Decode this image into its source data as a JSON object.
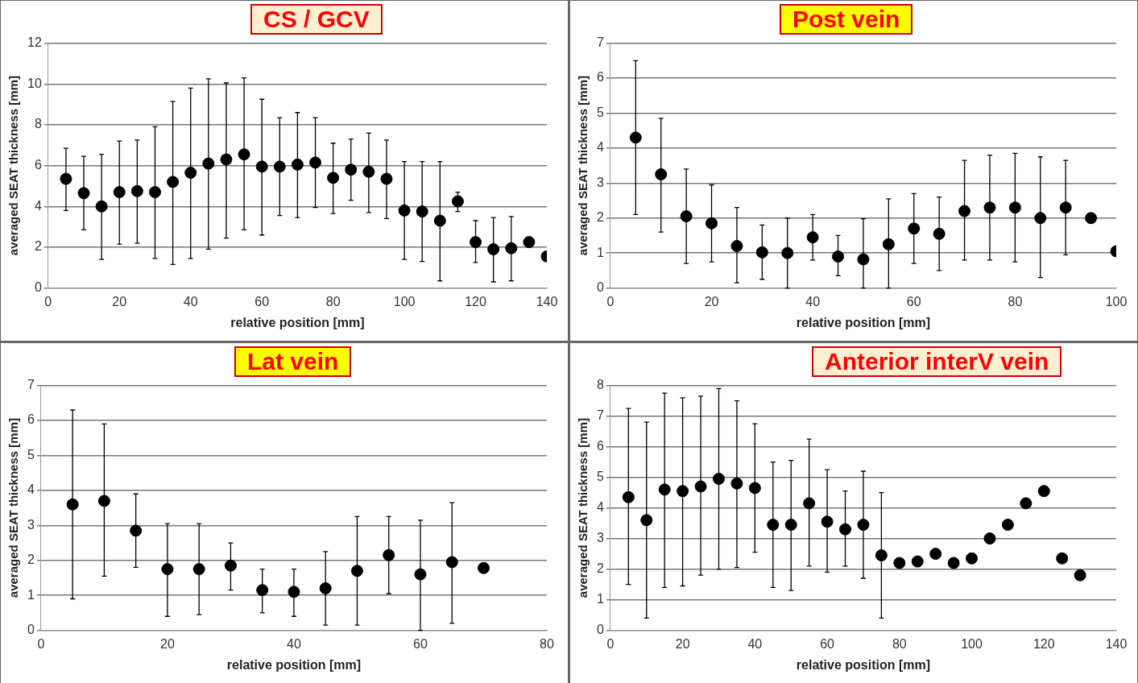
{
  "chart_data": [
    {
      "type": "scatter",
      "title": "CS / GCV",
      "xlabel": "relative position [mm]",
      "ylabel": "averaged SEAT thickness [mm]",
      "color": "#000000",
      "marker": "circle",
      "grid": "y",
      "legend": false,
      "x": [
        5,
        10,
        15,
        20,
        25,
        30,
        35,
        40,
        45,
        50,
        55,
        60,
        65,
        70,
        75,
        80,
        85,
        90,
        95,
        100,
        105,
        110,
        115,
        120,
        125,
        130,
        135,
        140
      ],
      "values": [
        5.35,
        4.65,
        4.0,
        4.7,
        4.75,
        4.7,
        5.2,
        5.65,
        6.1,
        6.3,
        6.55,
        5.95,
        5.95,
        6.05,
        6.15,
        5.4,
        5.8,
        5.7,
        5.35,
        3.8,
        3.75,
        3.3,
        4.25,
        2.25,
        1.9,
        1.95,
        2.25,
        1.55
      ],
      "errors": [
        [
          3.8,
          6.85
        ],
        [
          2.85,
          6.45
        ],
        [
          1.4,
          6.55
        ],
        [
          2.15,
          7.2
        ],
        [
          2.2,
          7.25
        ],
        [
          1.45,
          7.9
        ],
        [
          1.15,
          9.15
        ],
        [
          1.45,
          9.8
        ],
        [
          1.9,
          10.25
        ],
        [
          2.45,
          10.05
        ],
        [
          2.85,
          10.3
        ],
        [
          2.6,
          9.25
        ],
        [
          3.55,
          8.35
        ],
        [
          3.45,
          8.6
        ],
        [
          3.95,
          8.35
        ],
        [
          3.65,
          7.1
        ],
        [
          4.3,
          7.3
        ],
        [
          3.7,
          7.6
        ],
        [
          3.4,
          7.25
        ],
        [
          1.4,
          6.2
        ],
        [
          1.3,
          6.2
        ],
        [
          0.35,
          6.2
        ],
        [
          3.75,
          4.7
        ],
        [
          1.25,
          3.3
        ],
        [
          0.3,
          3.45
        ],
        [
          0.35,
          3.5
        ],
        null,
        null
      ],
      "xlim": [
        0,
        140
      ],
      "xticks": [
        0,
        20,
        40,
        60,
        80,
        100,
        120,
        140
      ],
      "ylim": [
        0,
        12
      ],
      "yticks": [
        0,
        2,
        4,
        6,
        8,
        10,
        12
      ]
    },
    {
      "type": "scatter",
      "title": "Post vein",
      "xlabel": "relative position [mm]",
      "ylabel": "averaged SEAT thickness [mm]",
      "color": "#000000",
      "marker": "circle",
      "grid": "y",
      "legend": false,
      "x": [
        5,
        10,
        15,
        20,
        25,
        30,
        35,
        40,
        45,
        50,
        55,
        60,
        65,
        70,
        75,
        80,
        85,
        90,
        95,
        100
      ],
      "values": [
        4.3,
        3.25,
        2.05,
        1.85,
        1.2,
        1.02,
        1.0,
        1.45,
        0.9,
        0.82,
        1.25,
        1.7,
        1.55,
        2.2,
        2.3,
        2.3,
        2.0,
        2.3,
        2.0,
        1.05
      ],
      "errors": [
        [
          2.1,
          6.5
        ],
        [
          1.6,
          4.85
        ],
        [
          0.7,
          3.4
        ],
        [
          0.75,
          2.95
        ],
        [
          0.15,
          2.3
        ],
        [
          0.25,
          1.8
        ],
        [
          0,
          2.0
        ],
        [
          0.8,
          2.1
        ],
        [
          0.35,
          1.5
        ],
        [
          0,
          1.98
        ],
        [
          0,
          2.55
        ],
        [
          0.7,
          2.7
        ],
        [
          0.5,
          2.6
        ],
        [
          0.8,
          3.65
        ],
        [
          0.8,
          3.8
        ],
        [
          0.75,
          3.85
        ],
        [
          0.3,
          3.75
        ],
        [
          0.95,
          3.65
        ],
        null,
        null
      ],
      "xlim": [
        0,
        100
      ],
      "xticks": [
        0,
        20,
        40,
        60,
        80,
        100
      ],
      "ylim": [
        0,
        7
      ],
      "yticks": [
        0,
        1,
        2,
        3,
        4,
        5,
        6,
        7
      ]
    },
    {
      "type": "scatter",
      "title": "Lat vein",
      "xlabel": "relative position [mm]",
      "ylabel": "averaged SEAT thickness [mm]",
      "color": "#000000",
      "marker": "circle",
      "grid": "y",
      "legend": false,
      "x": [
        5,
        10,
        15,
        20,
        25,
        30,
        35,
        40,
        45,
        50,
        55,
        60,
        65,
        70
      ],
      "values": [
        3.6,
        3.7,
        2.85,
        1.75,
        1.75,
        1.85,
        1.15,
        1.1,
        1.2,
        1.7,
        2.15,
        1.6,
        1.95,
        1.78
      ],
      "errors": [
        [
          0.9,
          6.3
        ],
        [
          1.55,
          5.9
        ],
        [
          1.8,
          3.9
        ],
        [
          0.4,
          3.05
        ],
        [
          0.45,
          3.05
        ],
        [
          1.15,
          2.5
        ],
        [
          0.5,
          1.75
        ],
        [
          0.4,
          1.75
        ],
        [
          0.15,
          2.25
        ],
        [
          0.15,
          3.25
        ],
        [
          1.05,
          3.25
        ],
        [
          0,
          3.15
        ],
        [
          0.2,
          3.65
        ],
        null
      ],
      "xlim": [
        0,
        80
      ],
      "xticks": [
        0,
        20,
        40,
        60,
        80
      ],
      "ylim": [
        0,
        7
      ],
      "yticks": [
        0,
        1,
        2,
        3,
        4,
        5,
        6,
        7
      ]
    },
    {
      "type": "scatter",
      "title": "Anterior interV vein",
      "xlabel": "relative position [mm]",
      "ylabel": "averaged SEAT thickness [mm]",
      "color": "#000000",
      "marker": "circle",
      "grid": "y",
      "legend": false,
      "x": [
        5,
        10,
        15,
        20,
        25,
        30,
        35,
        40,
        45,
        50,
        55,
        60,
        65,
        70,
        75,
        80,
        85,
        90,
        95,
        100,
        105,
        110,
        115,
        120,
        125,
        130
      ],
      "values": [
        4.35,
        3.6,
        4.6,
        4.55,
        4.7,
        4.95,
        4.8,
        4.65,
        3.45,
        3.45,
        4.15,
        3.55,
        3.3,
        3.45,
        2.45,
        2.2,
        2.25,
        2.5,
        2.2,
        2.35,
        3.0,
        3.45,
        4.15,
        4.55,
        2.35,
        1.8
      ],
      "errors": [
        [
          1.5,
          7.25
        ],
        [
          0.4,
          6.8
        ],
        [
          1.4,
          7.75
        ],
        [
          1.45,
          7.6
        ],
        [
          1.8,
          7.65
        ],
        [
          2.0,
          7.9
        ],
        [
          2.05,
          7.5
        ],
        [
          2.55,
          6.75
        ],
        [
          1.4,
          5.5
        ],
        [
          1.3,
          5.55
        ],
        [
          2.1,
          6.25
        ],
        [
          1.9,
          5.25
        ],
        [
          2.1,
          4.55
        ],
        [
          1.7,
          5.2
        ],
        [
          0.4,
          4.5
        ],
        null,
        null,
        null,
        null,
        null,
        null,
        null,
        null,
        null,
        null,
        null
      ],
      "xlim": [
        0,
        140
      ],
      "xticks": [
        0,
        20,
        40,
        60,
        80,
        100,
        120,
        140
      ],
      "ylim": [
        0,
        8
      ],
      "yticks": [
        0,
        1,
        2,
        3,
        4,
        5,
        6,
        7,
        8
      ]
    }
  ]
}
